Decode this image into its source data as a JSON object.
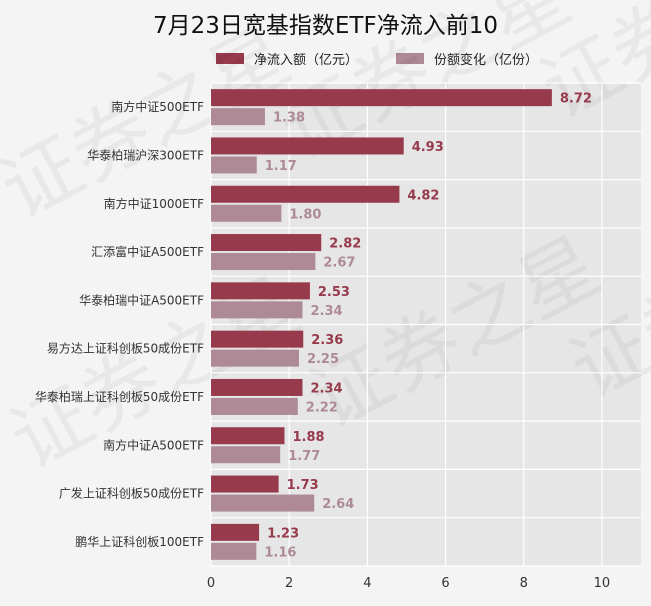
{
  "chart_data": {
    "type": "bar",
    "orientation": "horizontal",
    "title": "7月23日宽基指数ETF净流入前10",
    "categories": [
      "南方中证500ETF",
      "华泰柏瑞沪深300ETF",
      "南方中证1000ETF",
      "汇添富中证A500ETF",
      "华泰柏瑞中证A500ETF",
      "易方达上证科创板50成份ETF",
      "华泰柏瑞上证科创板50成份ETF",
      "南方中证A500ETF",
      "广发上证科创板50成份ETF",
      "鹏华上证科创板100ETF"
    ],
    "series": [
      {
        "name": "净流入额（亿元）",
        "color": "#973a4c",
        "values": [
          8.72,
          4.93,
          4.82,
          2.82,
          2.53,
          2.36,
          2.34,
          1.88,
          1.73,
          1.23
        ]
      },
      {
        "name": "份额变化（亿份）",
        "color": "#ad8a95",
        "values": [
          1.38,
          1.17,
          1.8,
          2.67,
          2.34,
          2.25,
          2.22,
          1.77,
          2.64,
          1.16
        ]
      }
    ],
    "xlim": [
      0,
      11
    ],
    "xticks": [
      0,
      2,
      4,
      6,
      8,
      10
    ],
    "grid": true,
    "legend_position": "top"
  },
  "watermark": "证券之星"
}
